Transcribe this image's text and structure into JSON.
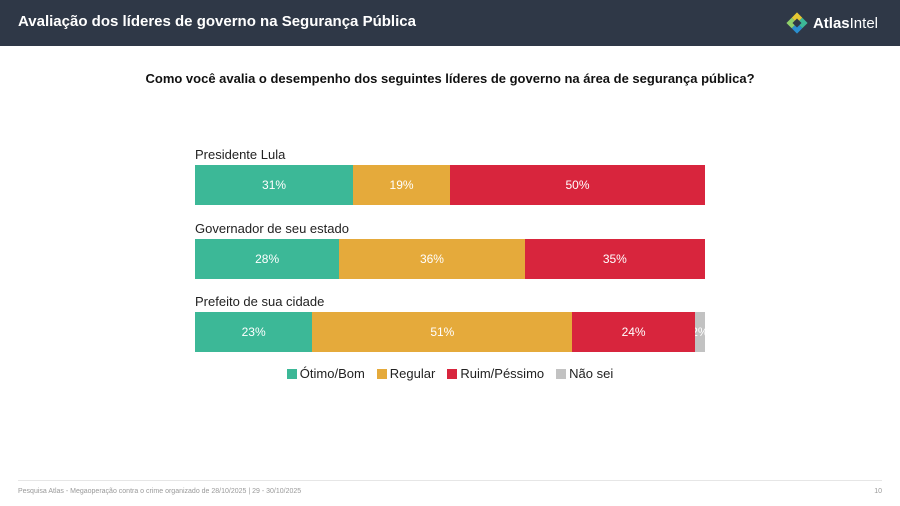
{
  "header": {
    "title": "Avaliação dos líderes de governo na Segurança Pública",
    "brand_bold": "Atlas",
    "brand_rest": "Intel",
    "bg_color": "#2f3847"
  },
  "chart_data": {
    "type": "bar",
    "orientation": "horizontal-stacked-100",
    "title": "Como você avalia o desempenho dos seguintes líderes de governo na área de segurança pública?",
    "categories": [
      "Presidente Lula",
      "Governador de seu estado",
      "Prefeito de sua cidade"
    ],
    "series": [
      {
        "name": "Ótimo/Bom",
        "color": "#3cb897",
        "values": [
          31,
          28,
          23
        ],
        "labels": [
          "31%",
          "28%",
          "23%"
        ]
      },
      {
        "name": "Regular",
        "color": "#e5aa3b",
        "values": [
          19,
          36,
          51
        ],
        "labels": [
          "19%",
          "36%",
          "51%"
        ]
      },
      {
        "name": "Ruim/Péssimo",
        "color": "#d8253d",
        "values": [
          50,
          35,
          24
        ],
        "labels": [
          "50%",
          "35%",
          "24%"
        ]
      },
      {
        "name": "Não sei",
        "color": "#c2c2c2",
        "values": [
          0,
          0,
          2
        ],
        "labels": [
          "",
          "",
          "2%"
        ]
      }
    ],
    "legend_position": "bottom-center",
    "grid": false
  },
  "footer": {
    "text": "Pesquisa Atlas - Megaoperação contra o crime organizado de 28/10/2025 | 29 - 30/10/2025",
    "page": "10"
  }
}
